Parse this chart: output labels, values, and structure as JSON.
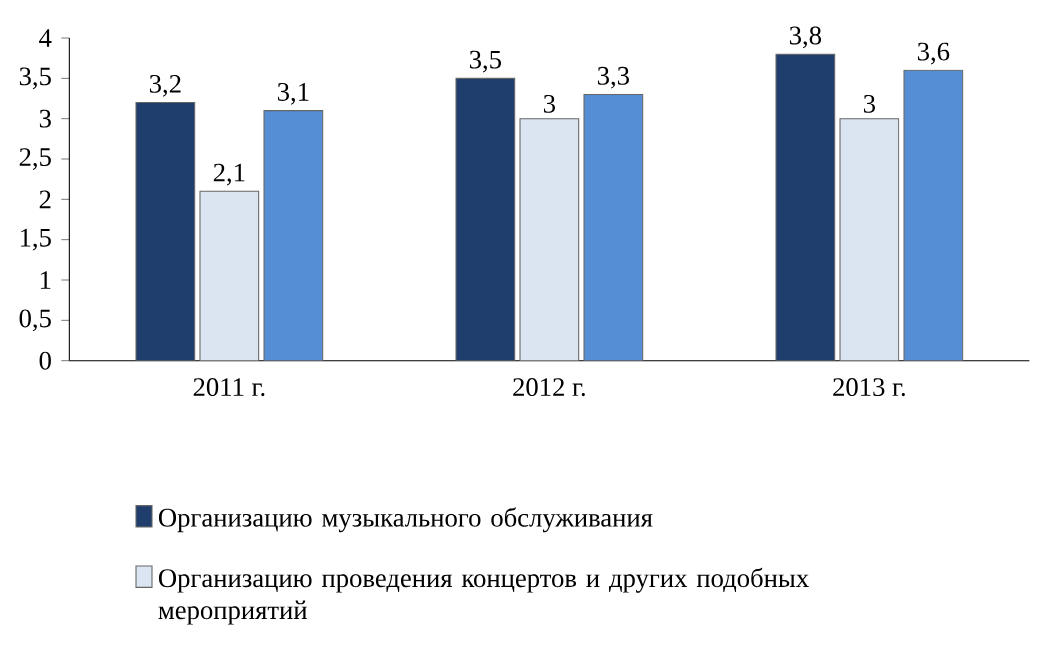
{
  "chart_data": {
    "type": "bar",
    "categories": [
      "2011 г.",
      "2012 г.",
      "2013 г."
    ],
    "series": [
      {
        "name": "Организацию музыкального обслуживания",
        "color": "#1f3e6d",
        "values": [
          3.2,
          3.5,
          3.8
        ],
        "value_labels": [
          "3,2",
          "3,5",
          "3,8"
        ]
      },
      {
        "name": "Организацию проведения концертов и других подобных мероприятий",
        "color": "#dbe5f1",
        "values": [
          2.1,
          3,
          3
        ],
        "value_labels": [
          "2,1",
          "3",
          "3"
        ]
      },
      {
        "color": "#558ed5",
        "values": [
          3.1,
          3.3,
          3.6
        ],
        "value_labels": [
          "3,1",
          "3,3",
          "3,6"
        ]
      }
    ],
    "ylim": [
      0,
      4
    ],
    "yticks": [
      0,
      {
        "value": 0.5,
        "label": "0,5"
      },
      1,
      {
        "value": 1.5,
        "label": "1,5"
      },
      2,
      {
        "value": 2.5,
        "label": "2,5"
      },
      3,
      {
        "value": 3.5,
        "label": "3,5"
      },
      4
    ],
    "legend": "bottom",
    "grid": false
  }
}
